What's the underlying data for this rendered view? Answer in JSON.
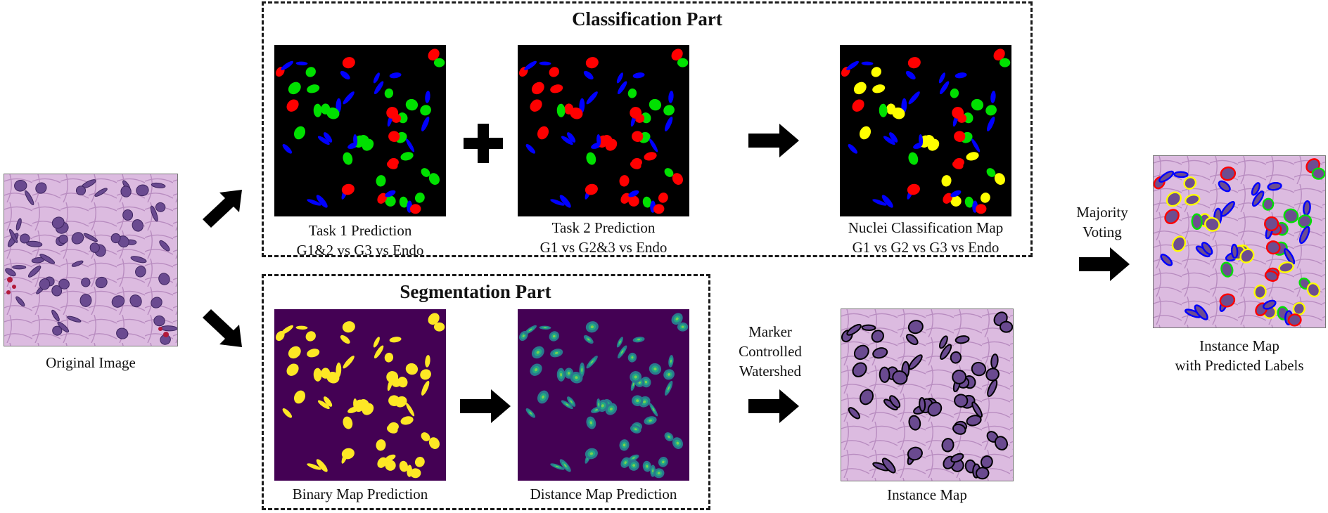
{
  "inputs": {
    "original_caption": "Original Image"
  },
  "classification": {
    "title": "Classification Part",
    "task1": {
      "line1": "Task 1 Prediction",
      "line2": "G1&2 vs G3 vs Endo"
    },
    "task2": {
      "line1": "Task 2 Prediction",
      "line2": "G1 vs G2&3 vs Endo"
    },
    "nuclei_map": {
      "line1": "Nuclei Classification Map",
      "line2": "G1 vs G2 vs G3 vs Endo"
    }
  },
  "segmentation": {
    "title": "Segmentation Part",
    "binary_caption": "Binary Map Prediction",
    "distance_caption": "Distance Map Prediction"
  },
  "watershed": {
    "line1": "Marker",
    "line2": "Controlled",
    "line3": "Watershed"
  },
  "instance_map_caption": "Instance Map",
  "voting": {
    "line1": "Majority",
    "line2": "Voting"
  },
  "output": {
    "line1": "Instance Map",
    "line2": "with Predicted Labels"
  },
  "colors": {
    "class_g1": "#ffff00",
    "class_g2": "#00e000",
    "class_g3": "#ff0000",
    "class_endo": "#0000ff",
    "seg_background": "#440154",
    "seg_foreground": "#fde725",
    "tissue": "#d7b0d8",
    "nucleus": "#6d4d90"
  }
}
